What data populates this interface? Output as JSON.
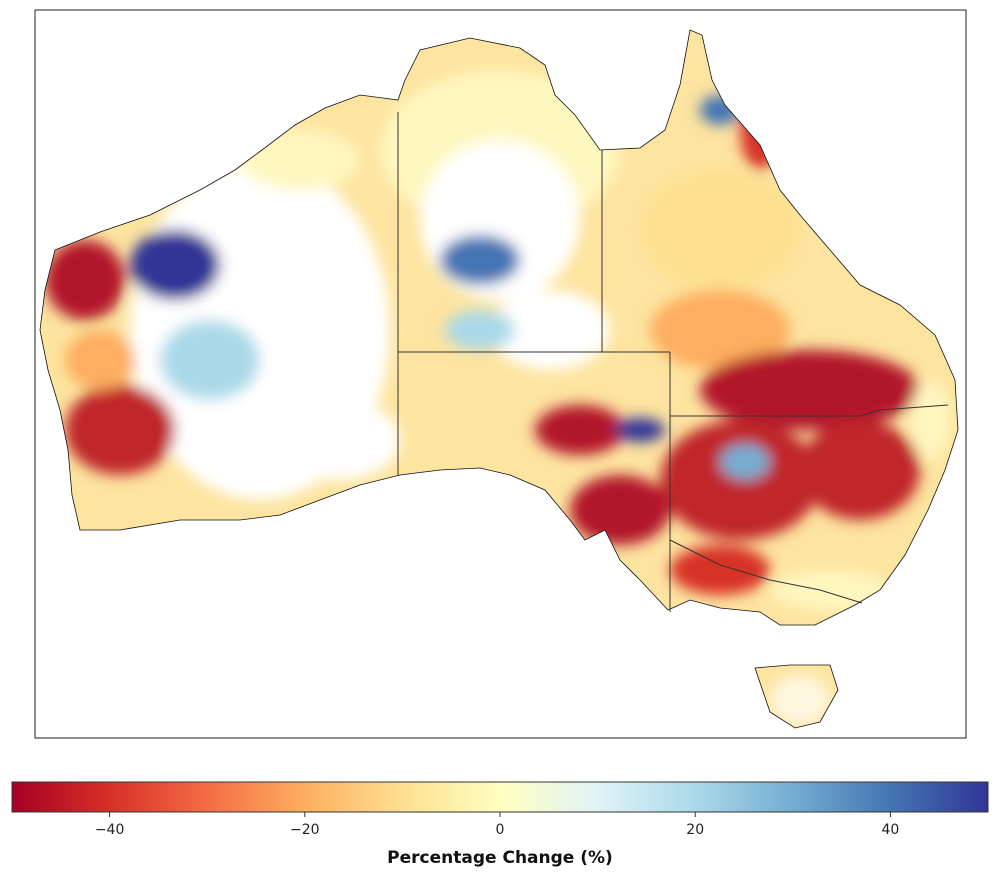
{
  "map": {
    "region": "Australia",
    "palette": {
      "strong_decrease": "#b2182b",
      "decrease": "#f46d43",
      "slight": "#fee090",
      "neutral": "#ffffbf",
      "increase": "#91bfdb",
      "strong_increase": "#313695",
      "no_data": "#ffffff"
    }
  },
  "colorbar": {
    "label": "Percentage Change (%)",
    "range": [
      -50,
      50
    ],
    "ticks": [
      -40,
      -20,
      0,
      20,
      40
    ],
    "tick_labels": [
      "−40",
      "−20",
      "0",
      "20",
      "40"
    ],
    "colors": [
      "#a50026",
      "#d73027",
      "#f46d43",
      "#fdae61",
      "#fee090",
      "#ffffbf",
      "#e0f3f8",
      "#abd9e9",
      "#74add1",
      "#4575b4",
      "#313695"
    ]
  }
}
